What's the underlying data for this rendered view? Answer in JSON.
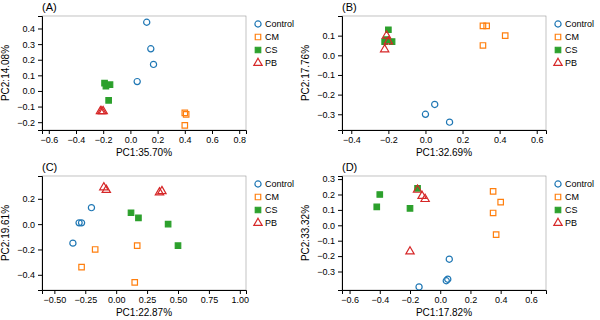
{
  "chart_data": [
    {
      "type": "scatter",
      "title": "(A)",
      "x_label": "PC1:35.70%",
      "y_label": "PC2:14.08%",
      "xlim": [
        -0.65,
        0.85
      ],
      "ylim": [
        -0.25,
        0.48
      ],
      "xticks": [
        {
          "value": -0.6,
          "label": "−0.6"
        },
        {
          "value": -0.4,
          "label": "−0.4"
        },
        {
          "value": -0.2,
          "label": "−0.2"
        },
        {
          "value": 0.0,
          "label": "0.0"
        },
        0.2,
        0.4,
        0.6,
        0.8
      ],
      "yticks": [
        {
          "value": -0.2,
          "label": "−0.2"
        },
        {
          "value": -0.1,
          "label": "−0.1"
        },
        {
          "value": 0.0,
          "label": "0.0"
        },
        0.1,
        0.2,
        0.3,
        0.4
      ],
      "legend": "right",
      "series": [
        {
          "name": "Control",
          "marker": "circle-open",
          "x": [
            0.12,
            0.15,
            0.17,
            0.05
          ],
          "values": [
            0.44,
            0.27,
            0.17,
            0.06
          ]
        },
        {
          "name": "CM",
          "marker": "square-open",
          "x": [
            0.4,
            0.41,
            0.4
          ],
          "values": [
            -0.14,
            -0.15,
            -0.22
          ]
        },
        {
          "name": "CS",
          "marker": "square",
          "x": [
            -0.19,
            -0.18,
            -0.15,
            -0.16
          ],
          "values": [
            0.05,
            0.03,
            0.04,
            -0.06
          ]
        },
        {
          "name": "PB",
          "marker": "triangle-open",
          "x": [
            -0.21,
            -0.22,
            -0.2
          ],
          "values": [
            -0.13,
            -0.13,
            -0.13
          ]
        }
      ]
    },
    {
      "type": "scatter",
      "title": "(B)",
      "x_label": "PC1:32.69%",
      "y_label": "PC2:17.76%",
      "xlim": [
        -0.45,
        0.65
      ],
      "ylim": [
        -0.38,
        0.2
      ],
      "xticks": [
        {
          "value": -0.4,
          "label": "−0.4"
        },
        {
          "value": -0.2,
          "label": "−0.2"
        },
        {
          "value": 0.0,
          "label": "0.0"
        },
        0.2,
        0.4,
        0.6
      ],
      "yticks": [
        {
          "value": -0.3,
          "label": "−0.3"
        },
        {
          "value": -0.2,
          "label": "−0.2"
        },
        {
          "value": -0.1,
          "label": "−0.1"
        },
        {
          "value": 0.0,
          "label": "0.0"
        },
        0.1
      ],
      "legend": "right",
      "series": [
        {
          "name": "Control",
          "marker": "circle-open",
          "x": [
            0.05,
            0.13,
            0.0
          ],
          "values": [
            -0.25,
            -0.34,
            -0.3
          ]
        },
        {
          "name": "CM",
          "marker": "square-open",
          "x": [
            0.31,
            0.33,
            0.43,
            0.31
          ],
          "values": [
            0.15,
            0.15,
            0.1,
            0.05
          ]
        },
        {
          "name": "CS",
          "marker": "square",
          "x": [
            -0.2,
            -0.21,
            -0.22,
            -0.18
          ],
          "values": [
            0.13,
            0.08,
            0.07,
            0.07
          ]
        },
        {
          "name": "PB",
          "marker": "triangle-open",
          "x": [
            -0.21,
            -0.22,
            -0.2
          ],
          "values": [
            0.1,
            0.03,
            0.07
          ]
        }
      ]
    },
    {
      "type": "scatter",
      "title": "(C)",
      "x_label": "PC1:22.87%",
      "y_label": "PC2:19.61%",
      "xlim": [
        -0.6,
        1.05
      ],
      "ylim": [
        -0.52,
        0.38
      ],
      "xticks": [
        {
          "value": -0.5,
          "label": "−0.50"
        },
        {
          "value": -0.25,
          "label": "−0.25"
        },
        {
          "value": 0.0,
          "label": "0.00"
        },
        0.25,
        {
          "value": 0.5,
          "label": "0.50"
        },
        0.75,
        {
          "value": 1.0,
          "label": "1.00"
        }
      ],
      "yticks": [
        {
          "value": -0.4,
          "label": "−0.4"
        },
        {
          "value": -0.2,
          "label": "−0.2"
        },
        {
          "value": 0.0,
          "label": "0.0"
        },
        0.2
      ],
      "legend": "right",
      "series": [
        {
          "name": "Control",
          "marker": "circle-open",
          "x": [
            -0.35,
            -0.2,
            -0.3,
            -0.28
          ],
          "values": [
            -0.15,
            0.13,
            0.01,
            0.01
          ]
        },
        {
          "name": "CM",
          "marker": "square-open",
          "x": [
            -0.17,
            -0.28,
            0.15,
            0.17
          ],
          "values": [
            -0.2,
            -0.34,
            -0.46,
            -0.17
          ]
        },
        {
          "name": "CS",
          "marker": "square",
          "x": [
            0.12,
            0.18,
            0.42,
            0.5
          ],
          "values": [
            0.09,
            0.05,
            0.0,
            -0.17
          ]
        },
        {
          "name": "PB",
          "marker": "triangle-open",
          "x": [
            -0.1,
            -0.08,
            0.35,
            0.37
          ],
          "values": [
            0.29,
            0.27,
            0.25,
            0.26
          ]
        }
      ]
    },
    {
      "type": "scatter",
      "title": "(D)",
      "x_label": "PC1:17.82%",
      "y_label": "PC2:33.32%",
      "xlim": [
        -0.65,
        0.7
      ],
      "ylim": [
        -0.42,
        0.32
      ],
      "xticks": [
        {
          "value": -0.6,
          "label": "−0.6"
        },
        {
          "value": -0.4,
          "label": "−0.4"
        },
        {
          "value": -0.2,
          "label": "−0.2"
        },
        {
          "value": 0.0,
          "label": "0.0"
        },
        0.2,
        0.4,
        0.6
      ],
      "yticks": [
        {
          "value": -0.3,
          "label": "−0.3"
        },
        {
          "value": -0.2,
          "label": "−0.2"
        },
        {
          "value": -0.1,
          "label": "−0.1"
        },
        {
          "value": 0.0,
          "label": "0.0"
        },
        0.1,
        0.2,
        0.3
      ],
      "legend": "right",
      "series": [
        {
          "name": "Control",
          "marker": "circle-open",
          "x": [
            0.06,
            0.05,
            0.04,
            -0.14
          ],
          "values": [
            -0.22,
            -0.35,
            -0.36,
            -0.4
          ]
        },
        {
          "name": "CM",
          "marker": "square-open",
          "x": [
            0.35,
            0.4,
            0.35,
            0.37
          ],
          "values": [
            0.22,
            0.15,
            0.08,
            -0.06
          ]
        },
        {
          "name": "CS",
          "marker": "square",
          "x": [
            -0.4,
            -0.42,
            -0.2,
            -0.15
          ],
          "values": [
            0.2,
            0.12,
            0.11,
            0.24
          ]
        },
        {
          "name": "PB",
          "marker": "triangle-open",
          "x": [
            -0.15,
            -0.12,
            -0.1,
            -0.2
          ],
          "values": [
            0.23,
            0.19,
            0.17,
            -0.17
          ]
        }
      ]
    }
  ]
}
